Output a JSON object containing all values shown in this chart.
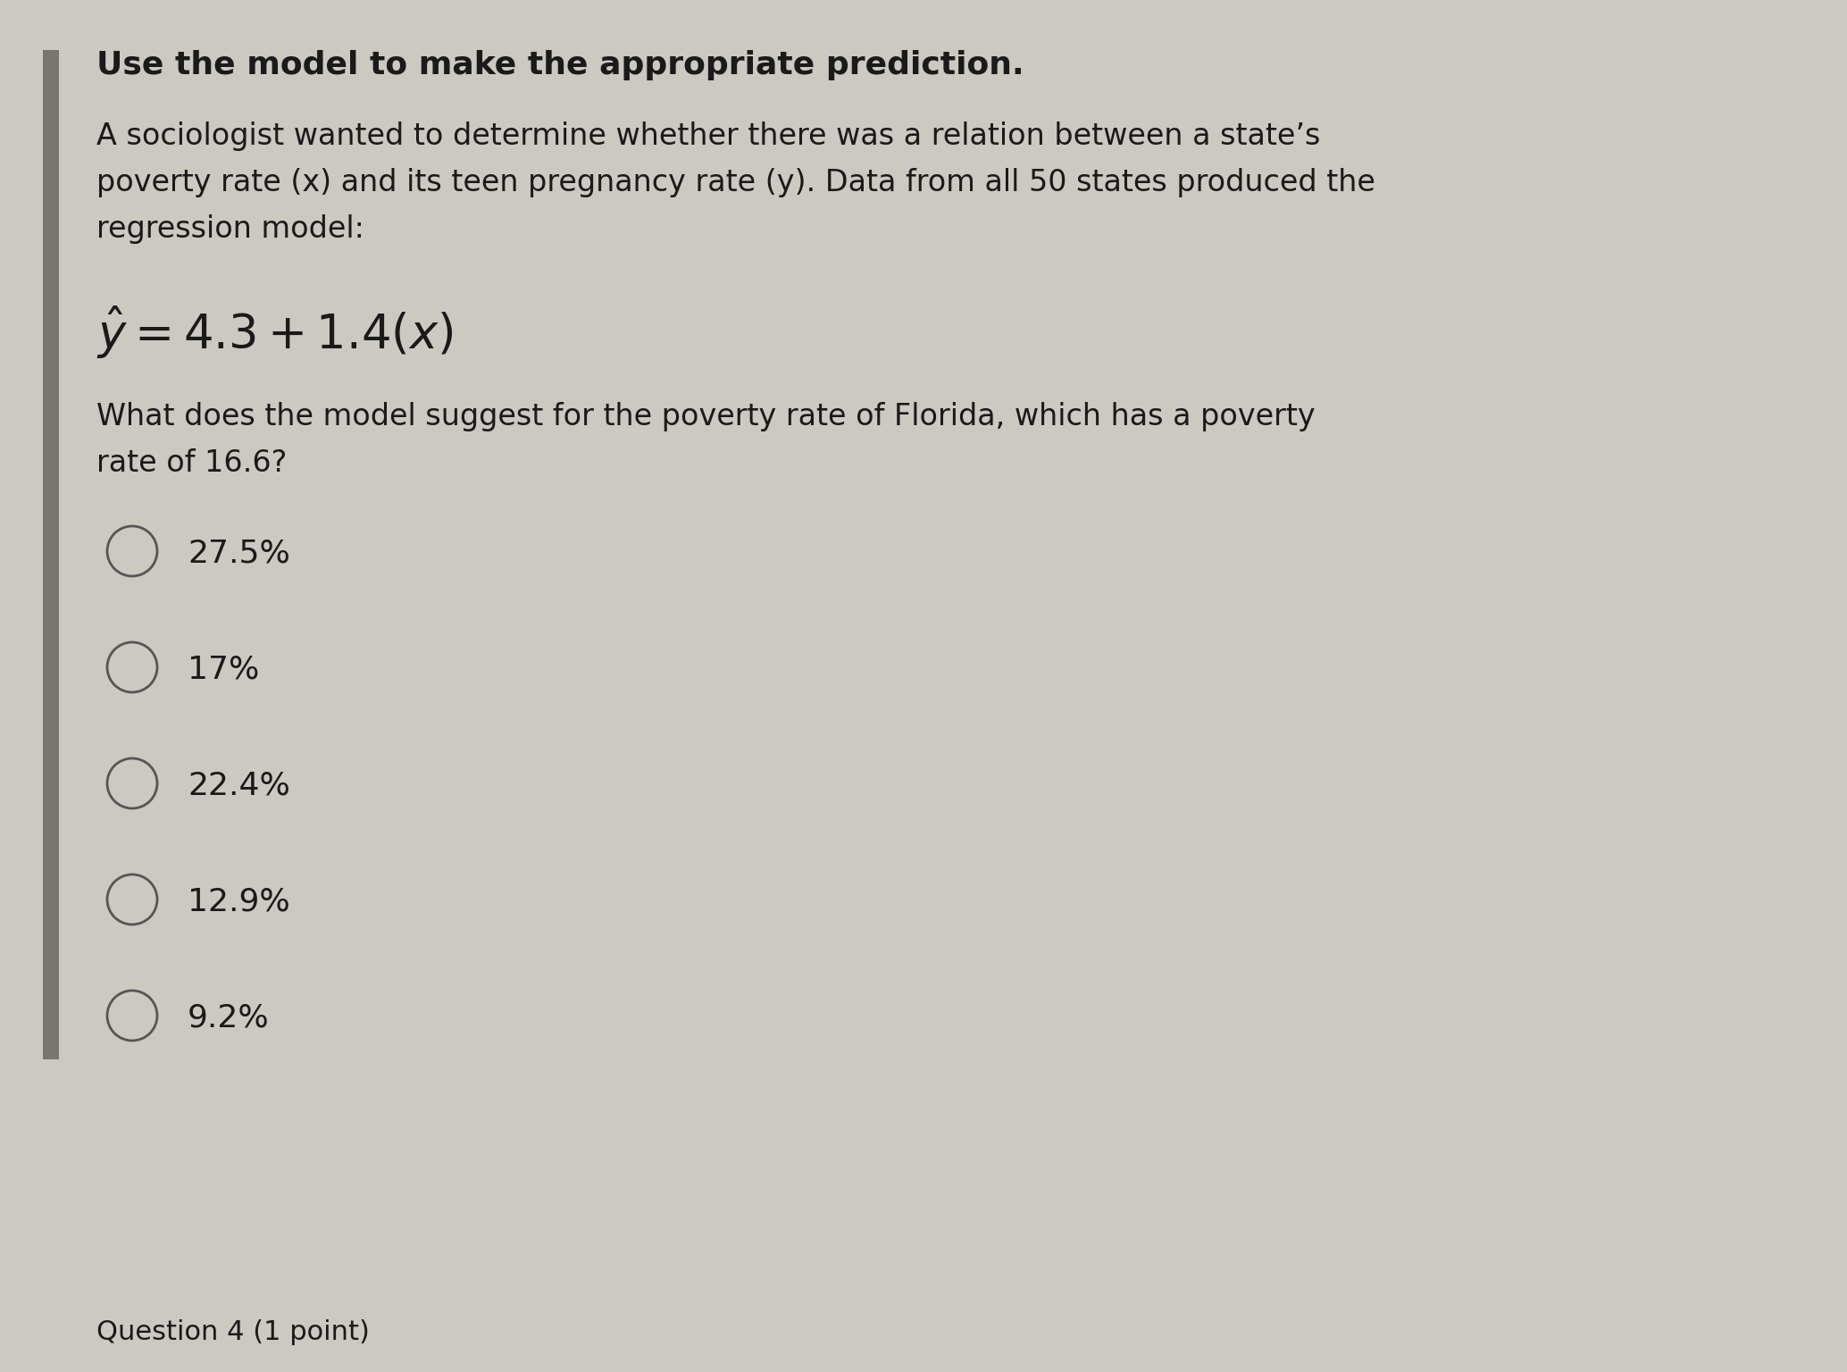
{
  "background_color": "#ccc8c2",
  "panel_color": "#d9d4ce",
  "left_bar_color": "#7a7570",
  "title_bold": "Use the model to make the appropriate prediction.",
  "body_line1": "A sociologist wanted to determine whether there was a relation between a state’s",
  "body_line2": "poverty rate (x) and its teen pregnancy rate (y). Data from all 50 states produced the",
  "body_line3": "regression model:",
  "equation": "$\\hat{y} = 4.3 + 1.4(x)$",
  "q_line1": "What does the model suggest for the poverty rate of Florida, which has a poverty",
  "q_line2": "rate of 16.6?",
  "choices": [
    "27.5%",
    "17%",
    "22.4%",
    "12.9%",
    "9.2%"
  ],
  "footer_text": "Question 4 (1 point)",
  "title_fontsize": 26,
  "body_fontsize": 24,
  "equation_fontsize": 38,
  "choice_fontsize": 26,
  "footer_fontsize": 22,
  "text_color": "#1a1a1a",
  "circle_color": "#555555"
}
